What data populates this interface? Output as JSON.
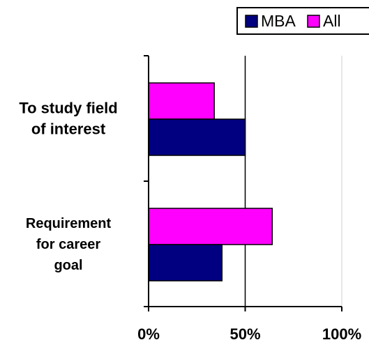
{
  "chart_data": {
    "type": "bar",
    "orientation": "horizontal",
    "categories": [
      "To study field of interest",
      "Requirement for career goal"
    ],
    "category_lines": [
      [
        "To study field",
        "of interest"
      ],
      [
        "Requirement",
        "for career",
        "goal"
      ]
    ],
    "series": [
      {
        "name": "MBA",
        "values": [
          50,
          38
        ],
        "color": "#000080"
      },
      {
        "name": "All",
        "values": [
          34,
          64
        ],
        "color": "#ff00ff"
      }
    ],
    "x_ticks": [
      "0%",
      "50%",
      "100%"
    ],
    "xlim": [
      0,
      100
    ],
    "grid": true,
    "legend_position": "top-right",
    "title": "",
    "xlabel": "",
    "ylabel": ""
  }
}
